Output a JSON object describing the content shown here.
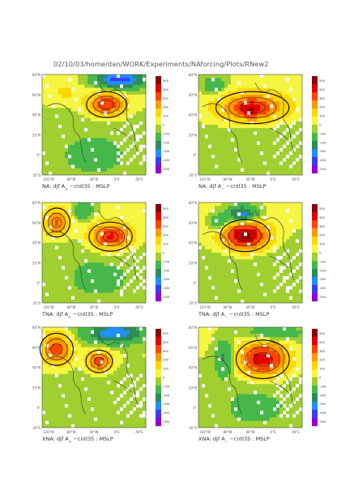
{
  "header": {
    "path": "02/10/03/home/dan/WORK/Experiments/NAforcing/Plots/RNew2"
  },
  "axes": {
    "lat_labels": [
      "80°N",
      "60°N",
      "40°N",
      "20°N",
      "0°",
      "20°S"
    ],
    "lon_labels": [
      "120°W",
      "80°W",
      "40°W",
      "0°E",
      "40°E"
    ]
  },
  "colorbar": {
    "ticks": [
      "500",
      "400",
      "300",
      "200",
      "100",
      "0",
      "-100",
      "-200",
      "-300",
      "-400",
      "-500"
    ],
    "colors": [
      "#8b0000",
      "#e00000",
      "#ff4500",
      "#ff9900",
      "#ffd700",
      "#f5f542",
      "#a0d030",
      "#46b84a",
      "#2e8b57",
      "#1e90ff",
      "#3b3bff",
      "#9400d3"
    ]
  },
  "panels": [
    {
      "id": "na-aplus",
      "caption_pre": "NA: djf A",
      "caption_sub": "+",
      "caption_post": " −cntl35 : MSLP"
    },
    {
      "id": "na-aminus",
      "caption_pre": "NA: djf A",
      "caption_sub": "−",
      "caption_post": " −cntl35 : MSLP"
    },
    {
      "id": "tna-aplus",
      "caption_pre": "TNA: djf A",
      "caption_sub": "+",
      "caption_post": " −cntl35 : MSLP"
    },
    {
      "id": "tna-aminus",
      "caption_pre": "TNA: djf A",
      "caption_sub": "−",
      "caption_post": " −cntl35 : MSLP"
    },
    {
      "id": "xna-aplus",
      "caption_pre": "XNA: djf A",
      "caption_sub": "+",
      "caption_post": " −cntl35 : MSLP"
    },
    {
      "id": "xna-aminus",
      "caption_pre": "XNA: djf A",
      "caption_sub": "−",
      "caption_post": " −cntl35 : MSLP"
    }
  ],
  "chart_data": [
    {
      "type": "heatmap",
      "title": "NA: djf A+ −cntl35 : MSLP",
      "variable": "MSLP",
      "x_range": [
        "120°W",
        "40°E"
      ],
      "y_range": [
        "20°S",
        "80°N"
      ],
      "color_range": [
        -500,
        500
      ],
      "features": [
        {
          "kind": "positive_anomaly",
          "peak": "~300",
          "location": "~45°N, 20°W"
        },
        {
          "kind": "negative_anomaly",
          "peak": "~-400",
          "location": "~75°N, 10°W"
        }
      ]
    },
    {
      "type": "heatmap",
      "title": "NA: djf A− −cntl35 : MSLP",
      "variable": "MSLP",
      "x_range": [
        "120°W",
        "40°E"
      ],
      "y_range": [
        "20°S",
        "80°N"
      ],
      "color_range": [
        -500,
        500
      ],
      "features": [
        {
          "kind": "positive_anomaly",
          "peak": "~400",
          "location": "~50°N, 40°W"
        }
      ]
    },
    {
      "type": "heatmap",
      "title": "TNA: djf A+ −cntl35 : MSLP",
      "variable": "MSLP",
      "x_range": [
        "120°W",
        "40°E"
      ],
      "y_range": [
        "20°S",
        "80°N"
      ],
      "color_range": [
        -500,
        500
      ],
      "features": [
        {
          "kind": "positive_anomaly",
          "peak": "~400",
          "location": "~55°N, 15°W"
        },
        {
          "kind": "positive_anomaly",
          "peak": "~300",
          "location": "~65°N, 110°W"
        }
      ]
    },
    {
      "type": "heatmap",
      "title": "TNA: djf A− −cntl35 : MSLP",
      "variable": "MSLP",
      "x_range": [
        "120°W",
        "40°E"
      ],
      "y_range": [
        "20°S",
        "80°N"
      ],
      "color_range": [
        -500,
        500
      ],
      "features": [
        {
          "kind": "positive_anomaly",
          "peak": "~500",
          "location": "~45°N, 30°W"
        },
        {
          "kind": "negative_anomaly",
          "peak": "~-300",
          "location": "~75°N, 30°W"
        }
      ]
    },
    {
      "type": "heatmap",
      "title": "XNA: djf A+ −cntl35 : MSLP",
      "variable": "MSLP",
      "x_range": [
        "120°W",
        "40°E"
      ],
      "y_range": [
        "20°S",
        "80°N"
      ],
      "color_range": [
        -500,
        500
      ],
      "features": [
        {
          "kind": "positive_anomaly",
          "peak": "~300",
          "location": "~50°N, 20°W"
        },
        {
          "kind": "positive_anomaly",
          "peak": "~300",
          "location": "~60°N, 110°W"
        },
        {
          "kind": "negative_anomaly",
          "peak": "~-300",
          "location": "~75°N, 10°W"
        }
      ]
    },
    {
      "type": "heatmap",
      "title": "XNA: djf A− −cntl35 : MSLP",
      "variable": "MSLP",
      "x_range": [
        "120°W",
        "40°E"
      ],
      "y_range": [
        "20°S",
        "80°N"
      ],
      "color_range": [
        -500,
        500
      ],
      "features": [
        {
          "kind": "positive_anomaly",
          "peak": "~400",
          "location": "~50°N, 15°W"
        },
        {
          "kind": "negative_anomaly",
          "peak": "~-200",
          "location": "~60°N, 80°W"
        }
      ]
    }
  ]
}
